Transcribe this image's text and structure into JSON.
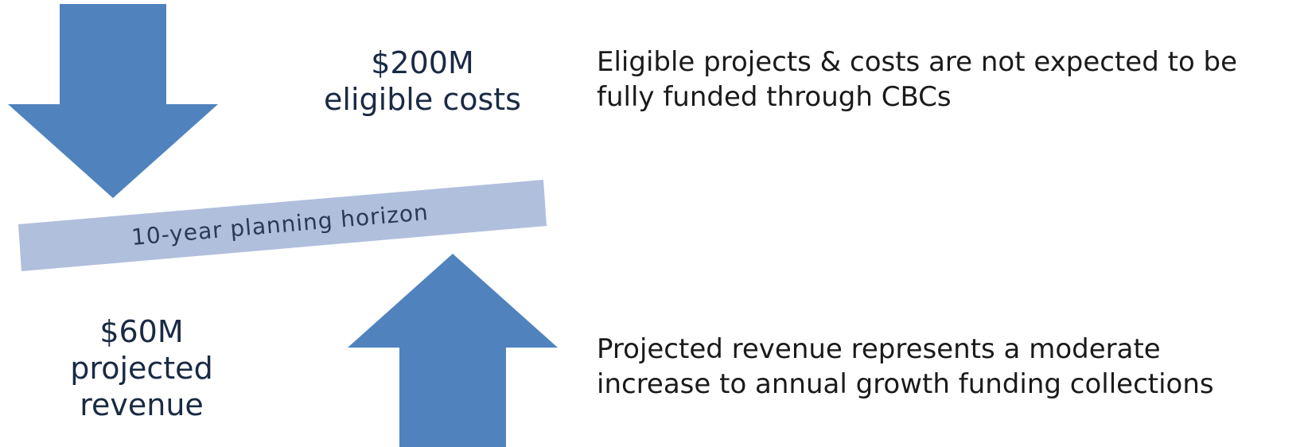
{
  "top": {
    "amount": "$200M",
    "label": "eligible costs",
    "note_line1": "Eligible projects & costs are not expected to be",
    "note_line2": "fully funded through CBCs"
  },
  "band": {
    "label": "10-year planning horizon"
  },
  "bottom": {
    "amount": "$60M",
    "label_line1": "projected",
    "label_line2": "revenue",
    "note_line1": "Projected revenue represents a moderate",
    "note_line2": "increase to annual growth funding collections"
  }
}
